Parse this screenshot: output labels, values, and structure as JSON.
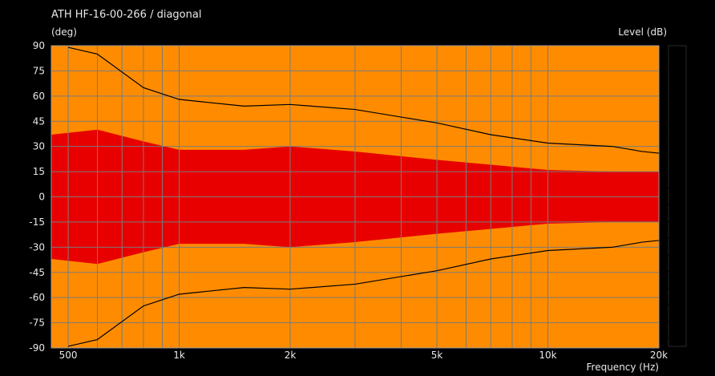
{
  "chart_data": {
    "type": "heatmap",
    "title": "ATH HF-16-00-266 / diagonal",
    "ylabel": "(deg)",
    "xlabel": "Frequency  (Hz)",
    "colorbar_label": "Level  (dB)",
    "x_scale": "log",
    "xlim": [
      450,
      20000
    ],
    "ylim": [
      -90,
      90
    ],
    "x_ticks": [
      {
        "value": 500,
        "label": "500"
      },
      {
        "value": 1000,
        "label": "1k"
      },
      {
        "value": 2000,
        "label": "2k"
      },
      {
        "value": 5000,
        "label": "5k"
      },
      {
        "value": 10000,
        "label": "10k"
      },
      {
        "value": 20000,
        "label": "20k"
      }
    ],
    "y_ticks": [
      {
        "value": 90,
        "label": "90"
      },
      {
        "value": 75,
        "label": "75"
      },
      {
        "value": 60,
        "label": "60"
      },
      {
        "value": 45,
        "label": "45"
      },
      {
        "value": 30,
        "label": "30"
      },
      {
        "value": 15,
        "label": "15"
      },
      {
        "value": 0,
        "label": "0"
      },
      {
        "value": -15,
        "label": "-15"
      },
      {
        "value": -30,
        "label": "-30"
      },
      {
        "value": -45,
        "label": "-45"
      },
      {
        "value": -60,
        "label": "-60"
      },
      {
        "value": -75,
        "label": "-75"
      },
      {
        "value": -90,
        "label": "-90"
      }
    ],
    "colorbar_range": [
      -29,
      7
    ],
    "colorbar_ticks": [
      {
        "value": 6,
        "label": "6"
      },
      {
        "value": 4,
        "label": "4"
      },
      {
        "value": 2,
        "label": "2"
      },
      {
        "value": 0,
        "label": "0"
      },
      {
        "value": -2,
        "label": "-2"
      },
      {
        "value": -4,
        "label": "-4"
      },
      {
        "value": -6,
        "label": "-6"
      },
      {
        "value": -8,
        "label": "-8"
      },
      {
        "value": -10,
        "label": "-10"
      },
      {
        "value": -12,
        "label": "-12"
      },
      {
        "value": -14,
        "label": "-14"
      },
      {
        "value": -16,
        "label": "-16"
      },
      {
        "value": -18,
        "label": "-18"
      },
      {
        "value": -20,
        "label": "-20"
      },
      {
        "value": -22,
        "label": "-22"
      },
      {
        "value": -24,
        "label": "-24"
      },
      {
        "value": -26,
        "label": "-26"
      },
      {
        "value": -28,
        "label": "-28"
      }
    ],
    "color_levels": [
      {
        "from": 4,
        "to": 7,
        "color": "#a00000"
      },
      {
        "from": 2,
        "to": 4,
        "color": "#c80000"
      },
      {
        "from": 0,
        "to": 2,
        "color": "#ee1010"
      },
      {
        "from": -2,
        "to": 0,
        "color": "#ff2800"
      },
      {
        "from": -4,
        "to": -2,
        "color": "#ff5a00"
      },
      {
        "from": -6,
        "to": -4,
        "color": "#ff8c00"
      },
      {
        "from": -8,
        "to": -6,
        "color": "#ffc800"
      },
      {
        "from": -10,
        "to": -8,
        "color": "#ffff00"
      },
      {
        "from": -12,
        "to": -10,
        "color": "#c8ff32"
      },
      {
        "from": -14,
        "to": -12,
        "color": "#64ff64"
      },
      {
        "from": -16,
        "to": -14,
        "color": "#32ffc8"
      },
      {
        "from": -18,
        "to": -16,
        "color": "#00ffff"
      },
      {
        "from": -20,
        "to": -18,
        "color": "#00c8ff"
      },
      {
        "from": -22,
        "to": -20,
        "color": "#0096ff"
      },
      {
        "from": -24,
        "to": -22,
        "color": "#0064ff"
      },
      {
        "from": -26,
        "to": -24,
        "color": "#0032ff"
      },
      {
        "from": -28,
        "to": -26,
        "color": "#0000e6"
      },
      {
        "from": -29,
        "to": -28,
        "color": "#0000b4"
      }
    ],
    "contour_lines": [
      {
        "level": -6,
        "points": [
          [
            500,
            89
          ],
          [
            600,
            85
          ],
          [
            800,
            65
          ],
          [
            1000,
            58
          ],
          [
            1500,
            54
          ],
          [
            2000,
            55
          ],
          [
            3000,
            52
          ],
          [
            5000,
            44
          ],
          [
            7000,
            37
          ],
          [
            10000,
            32
          ],
          [
            15000,
            30
          ],
          [
            18000,
            27
          ],
          [
            20000,
            26
          ]
        ]
      },
      {
        "level": -6,
        "points": [
          [
            500,
            -89
          ],
          [
            600,
            -85
          ],
          [
            800,
            -65
          ],
          [
            1000,
            -58
          ],
          [
            1500,
            -54
          ],
          [
            2000,
            -55
          ],
          [
            3000,
            -52
          ],
          [
            5000,
            -44
          ],
          [
            7000,
            -37
          ],
          [
            10000,
            -32
          ],
          [
            15000,
            -30
          ],
          [
            18000,
            -27
          ],
          [
            20000,
            -26
          ]
        ]
      }
    ],
    "contour_bands": [
      {
        "level": -2,
        "points": [
          [
            450,
            37
          ],
          [
            600,
            40
          ],
          [
            800,
            33
          ],
          [
            1000,
            28
          ],
          [
            1500,
            28
          ],
          [
            2000,
            30
          ],
          [
            3000,
            27
          ],
          [
            5000,
            22
          ],
          [
            10000,
            16
          ],
          [
            15000,
            15
          ],
          [
            20000,
            15
          ]
        ]
      },
      {
        "level": -4,
        "points": [
          [
            450,
            50
          ],
          [
            600,
            49
          ],
          [
            800,
            42
          ],
          [
            1000,
            37
          ],
          [
            1500,
            37
          ],
          [
            2000,
            40
          ],
          [
            3000,
            38
          ],
          [
            5000,
            31
          ],
          [
            10000,
            25
          ],
          [
            15000,
            23
          ],
          [
            20000,
            22
          ]
        ]
      },
      {
        "level": -6,
        "points": [
          [
            450,
            73
          ],
          [
            600,
            73
          ],
          [
            800,
            58
          ],
          [
            1000,
            49
          ],
          [
            1500,
            46
          ],
          [
            2000,
            47
          ],
          [
            3000,
            45
          ],
          [
            5000,
            38
          ],
          [
            10000,
            30
          ],
          [
            15000,
            28
          ],
          [
            20000,
            27
          ]
        ]
      },
      {
        "level": -8,
        "points": [
          [
            450,
            91
          ],
          [
            600,
            91
          ],
          [
            800,
            76
          ],
          [
            1000,
            66
          ],
          [
            1500,
            61
          ],
          [
            2000,
            62
          ],
          [
            3000,
            59
          ],
          [
            5000,
            50
          ],
          [
            10000,
            41
          ],
          [
            15000,
            34
          ],
          [
            20000,
            31
          ]
        ]
      },
      {
        "level": -10,
        "points": [
          [
            450,
            91
          ],
          [
            700,
            91
          ],
          [
            900,
            86
          ],
          [
            1000,
            80
          ],
          [
            1500,
            72
          ],
          [
            2000,
            72
          ],
          [
            3000,
            68
          ],
          [
            5000,
            58
          ],
          [
            10000,
            47
          ],
          [
            15000,
            40
          ],
          [
            20000,
            36
          ]
        ]
      },
      {
        "level": -12,
        "points": [
          [
            450,
            91
          ],
          [
            900,
            91
          ],
          [
            1000,
            89
          ],
          [
            1500,
            82
          ],
          [
            2000,
            80
          ],
          [
            3000,
            75
          ],
          [
            5000,
            64
          ],
          [
            10000,
            53
          ],
          [
            15000,
            46
          ],
          [
            20000,
            41
          ]
        ]
      },
      {
        "level": -14,
        "points": [
          [
            450,
            91
          ],
          [
            1300,
            91
          ],
          [
            1500,
            88
          ],
          [
            2000,
            86
          ],
          [
            3000,
            80
          ],
          [
            5000,
            70
          ],
          [
            10000,
            58
          ],
          [
            15000,
            51
          ],
          [
            20000,
            46
          ]
        ]
      },
      {
        "level": -16,
        "points": [
          [
            450,
            91
          ],
          [
            2000,
            91
          ],
          [
            3000,
            85
          ],
          [
            5000,
            75
          ],
          [
            10000,
            63
          ],
          [
            15000,
            56
          ],
          [
            20000,
            51
          ]
        ]
      },
      {
        "level": -18,
        "points": [
          [
            450,
            91
          ],
          [
            3000,
            91
          ],
          [
            4000,
            86
          ],
          [
            5000,
            80
          ],
          [
            10000,
            68
          ],
          [
            15000,
            61
          ],
          [
            20000,
            56
          ]
        ]
      },
      {
        "level": -20,
        "points": [
          [
            450,
            91
          ],
          [
            4500,
            91
          ],
          [
            5000,
            87
          ],
          [
            10000,
            73
          ],
          [
            15000,
            66
          ],
          [
            20000,
            61
          ]
        ]
      },
      {
        "level": -22,
        "points": [
          [
            450,
            91
          ],
          [
            6000,
            91
          ],
          [
            10000,
            79
          ],
          [
            15000,
            71
          ],
          [
            20000,
            66
          ]
        ]
      },
      {
        "level": -24,
        "points": [
          [
            450,
            91
          ],
          [
            8000,
            91
          ],
          [
            10000,
            85
          ],
          [
            15000,
            77
          ],
          [
            20000,
            72
          ]
        ]
      },
      {
        "level": -26,
        "points": [
          [
            450,
            91
          ],
          [
            11000,
            91
          ],
          [
            13000,
            86
          ],
          [
            15000,
            83
          ],
          [
            20000,
            78
          ]
        ]
      },
      {
        "level": -28,
        "points": [
          [
            450,
            91
          ],
          [
            14000,
            91
          ],
          [
            16000,
            88
          ],
          [
            20000,
            84
          ]
        ]
      }
    ]
  }
}
